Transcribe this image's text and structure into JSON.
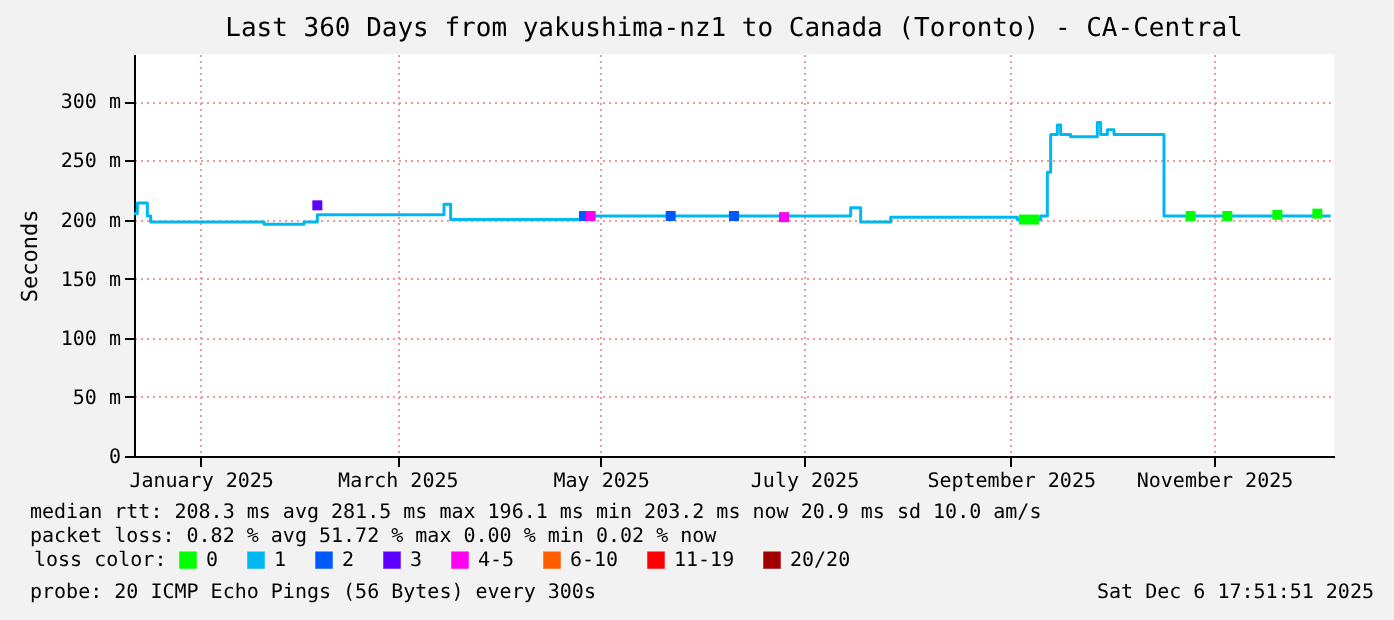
{
  "chart_data": {
    "type": "step",
    "title": "Last 360 Days from yakushima-nz1 to Canada (Toronto) - CA-Central",
    "ylabel": "Seconds",
    "legend_title": "loss color:",
    "xlim": [
      "2024-12-12",
      "2025-12-07"
    ],
    "xticks": [
      {
        "value": "2025-01-01",
        "label": "January 2025"
      },
      {
        "value": "2025-03-01",
        "label": "March 2025"
      },
      {
        "value": "2025-05-01",
        "label": "May 2025"
      },
      {
        "value": "2025-07-01",
        "label": "July 2025"
      },
      {
        "value": "2025-09-01",
        "label": "September 2025"
      },
      {
        "value": "2025-11-01",
        "label": "November 2025"
      }
    ],
    "ylim": [
      0,
      340
    ],
    "yticks": [
      0,
      {
        "value": 50,
        "label": "50 m"
      },
      {
        "value": 100,
        "label": "100 m"
      },
      {
        "value": 150,
        "label": "150 m"
      },
      {
        "value": 200,
        "label": "200 m"
      },
      {
        "value": 250,
        "label": "250 m"
      },
      {
        "value": 300,
        "label": "300 m"
      }
    ],
    "grid": true,
    "legend": "bottom",
    "line_style": "solid",
    "series": [
      {
        "name": "0",
        "color": "#00ff00",
        "type": "scatter",
        "x": [
          "2025-09-05",
          "2025-09-08",
          "2025-10-25",
          "2025-11-05",
          "2025-11-20",
          "2025-12-02"
        ],
        "values": [
          200,
          200,
          203,
          203,
          204,
          205
        ]
      },
      {
        "name": "1",
        "color": "#00b8f0",
        "x": [
          "2024-12-12",
          "2024-12-13",
          "2024-12-15",
          "2024-12-16",
          "2024-12-17",
          "2025-01-20",
          "2025-02-01",
          "2025-02-05",
          "2025-03-14",
          "2025-03-15",
          "2025-03-17",
          "2025-04-25",
          "2025-07-15",
          "2025-07-18",
          "2025-07-27",
          "2025-09-03",
          "2025-09-10",
          "2025-09-12",
          "2025-09-13",
          "2025-09-15",
          "2025-09-16",
          "2025-09-19",
          "2025-09-27",
          "2025-09-28",
          "2025-09-30",
          "2025-10-02",
          "2025-10-17",
          "2025-12-06"
        ],
        "values": [
          205,
          214,
          214,
          203,
          198,
          196,
          198,
          204,
          204,
          213,
          200,
          203,
          210,
          198,
          202,
          200,
          203,
          240,
          272,
          280,
          272,
          270,
          282,
          272,
          276,
          272,
          203,
          203
        ]
      },
      {
        "name": "2",
        "color": "#0059ff",
        "type": "scatter",
        "x": [
          "2025-04-26",
          "2025-05-22",
          "2025-06-10"
        ],
        "values": [
          203,
          203,
          203
        ]
      },
      {
        "name": "3",
        "color": "#5e00ff",
        "type": "scatter",
        "x": [
          "2025-02-05"
        ],
        "values": [
          212
        ]
      },
      {
        "name": "4-5",
        "color": "#ff00f0",
        "type": "scatter",
        "x": [
          "2025-04-28",
          "2025-06-25"
        ],
        "values": [
          203,
          202
        ]
      },
      {
        "name": "6-10",
        "color": "#ff5e00",
        "type": "scatter"
      },
      {
        "name": "11-19",
        "color": "#ff0000",
        "type": "scatter"
      },
      {
        "name": "20/20",
        "color": "#a10000",
        "type": "scatter"
      }
    ],
    "annotations": [
      "median rtt:  208.3 ms avg  281.5 ms max  196.1 ms min  203.2 ms now  20.9 ms sd  10.0    am/s",
      "packet loss: 0.82 % avg  51.72 % max  0.00 % min  0.02 % now",
      "probe:       20 ICMP Echo Pings (56 Bytes) every 300s",
      "Sat Dec  6 17:51:51 2025"
    ]
  }
}
